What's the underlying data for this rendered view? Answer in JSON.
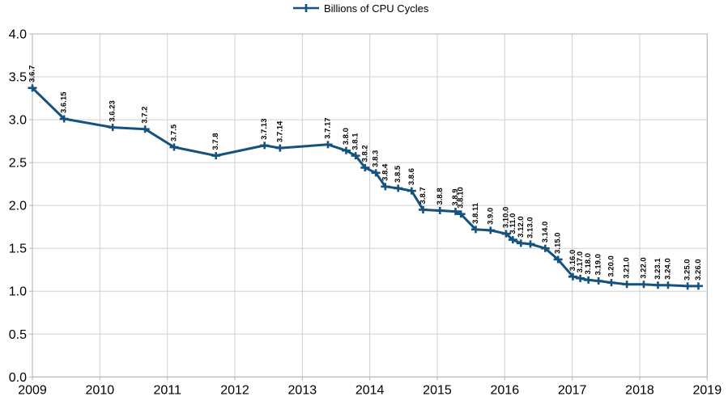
{
  "legend": {
    "label": "Billions of CPU Cycles"
  },
  "colors": {
    "series": "#15527d",
    "grid": "#d0d0d0",
    "border": "#b3b3b3",
    "axis_text": "#000000",
    "point_label_text": "#000000",
    "background": "#ffffff"
  },
  "chart_data": {
    "type": "line",
    "title": "",
    "series_name": "Billions of CPU Cycles",
    "legend_position": "top-center",
    "grid": true,
    "marker": "plus",
    "x_axis": {
      "min": 2009,
      "max": 2019,
      "ticks": [
        2009,
        2010,
        2011,
        2012,
        2013,
        2014,
        2015,
        2016,
        2017,
        2018,
        2019
      ]
    },
    "y_axis": {
      "min": 0.0,
      "max": 4.0,
      "step": 0.5,
      "decimals": 1
    },
    "points": [
      {
        "label": "3.6.7",
        "x": 2009.0,
        "y": 3.37
      },
      {
        "label": "3.6.15",
        "x": 2009.47,
        "y": 3.01
      },
      {
        "label": "3.6.23",
        "x": 2010.19,
        "y": 2.91
      },
      {
        "label": "3.7.2",
        "x": 2010.67,
        "y": 2.89
      },
      {
        "label": "3.7.5",
        "x": 2011.1,
        "y": 2.68
      },
      {
        "label": "3.7.8",
        "x": 2011.72,
        "y": 2.58
      },
      {
        "label": "3.7.13",
        "x": 2012.44,
        "y": 2.7
      },
      {
        "label": "3.7.14",
        "x": 2012.67,
        "y": 2.67
      },
      {
        "label": "3.7.17",
        "x": 2013.38,
        "y": 2.71
      },
      {
        "label": "3.8.0",
        "x": 2013.65,
        "y": 2.64
      },
      {
        "label": "3.8.1",
        "x": 2013.79,
        "y": 2.58
      },
      {
        "label": "3.8.2",
        "x": 2013.93,
        "y": 2.44
      },
      {
        "label": "3.8.3",
        "x": 2014.09,
        "y": 2.38
      },
      {
        "label": "3.8.4",
        "x": 2014.23,
        "y": 2.22
      },
      {
        "label": "3.8.5",
        "x": 2014.42,
        "y": 2.2
      },
      {
        "label": "3.8.6",
        "x": 2014.62,
        "y": 2.17
      },
      {
        "label": "3.8.7",
        "x": 2014.79,
        "y": 1.95
      },
      {
        "label": "3.8.8",
        "x": 2015.04,
        "y": 1.94
      },
      {
        "label": "3.8.9",
        "x": 2015.27,
        "y": 1.93
      },
      {
        "label": "3.8.10",
        "x": 2015.35,
        "y": 1.9
      },
      {
        "label": "3.8.11",
        "x": 2015.57,
        "y": 1.72
      },
      {
        "label": "3.9.0",
        "x": 2015.79,
        "y": 1.71
      },
      {
        "label": "3.10.0",
        "x": 2016.02,
        "y": 1.67
      },
      {
        "label": "3.11.0",
        "x": 2016.12,
        "y": 1.6
      },
      {
        "label": "3.12.0",
        "x": 2016.24,
        "y": 1.56
      },
      {
        "label": "3.13.0",
        "x": 2016.38,
        "y": 1.55
      },
      {
        "label": "3.14.0",
        "x": 2016.6,
        "y": 1.5
      },
      {
        "label": "3.15.0",
        "x": 2016.79,
        "y": 1.37
      },
      {
        "label": "3.16.0",
        "x": 2017.01,
        "y": 1.17
      },
      {
        "label": "3.17.0",
        "x": 2017.12,
        "y": 1.15
      },
      {
        "label": "3.18.0",
        "x": 2017.24,
        "y": 1.13
      },
      {
        "label": "3.19.0",
        "x": 2017.39,
        "y": 1.12
      },
      {
        "label": "3.20.0",
        "x": 2017.58,
        "y": 1.1
      },
      {
        "label": "3.21.0",
        "x": 2017.81,
        "y": 1.08
      },
      {
        "label": "3.22.0",
        "x": 2018.06,
        "y": 1.08
      },
      {
        "label": "3.23.1",
        "x": 2018.27,
        "y": 1.07
      },
      {
        "label": "3.24.0",
        "x": 2018.42,
        "y": 1.07
      },
      {
        "label": "3.25.0",
        "x": 2018.71,
        "y": 1.06
      },
      {
        "label": "3.26.0",
        "x": 2018.87,
        "y": 1.06
      }
    ]
  }
}
